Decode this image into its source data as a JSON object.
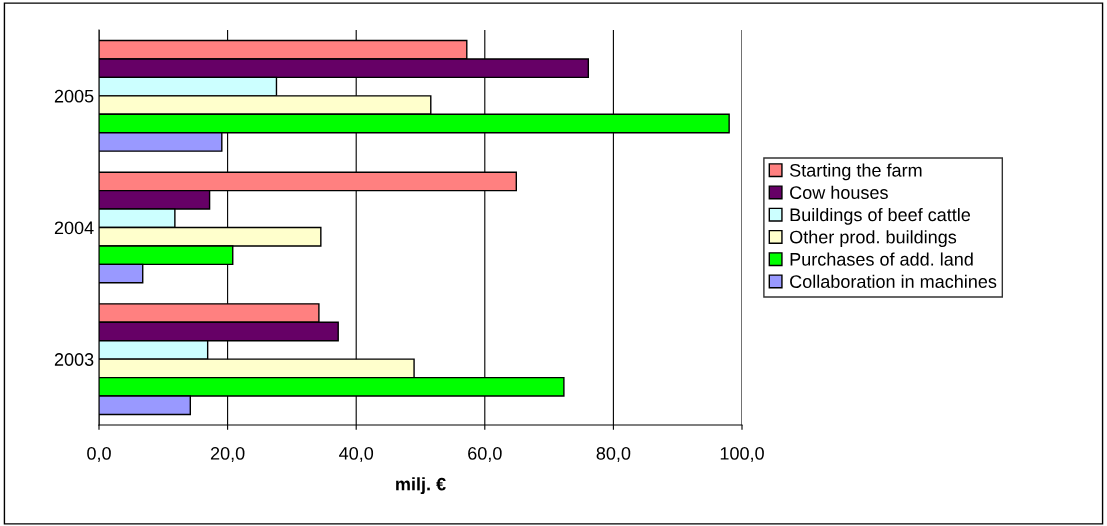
{
  "chart_data": {
    "type": "bar",
    "orientation": "horizontal",
    "xlabel": "milj. €",
    "categories": [
      "2005",
      "2004",
      "2003"
    ],
    "series": [
      {
        "name": "Starting the farm",
        "color": "#ff8080",
        "values": [
          57.2,
          64.9,
          34.2
        ]
      },
      {
        "name": "Cow houses",
        "color": "#660066",
        "values": [
          76.1,
          17.2,
          37.2
        ]
      },
      {
        "name": "Buildings of beef cattle",
        "color": "#ccffff",
        "values": [
          27.6,
          11.8,
          16.9
        ]
      },
      {
        "name": "Other prod. buildings",
        "color": "#ffffcc",
        "values": [
          51.6,
          34.5,
          49.0
        ]
      },
      {
        "name": "Purchases of add. land",
        "color": "#00ff00",
        "values": [
          98.0,
          20.8,
          72.3
        ]
      },
      {
        "name": "Collaboration in machines",
        "color": "#9999ff",
        "values": [
          19.1,
          6.8,
          14.2
        ]
      }
    ],
    "xlim": [
      0,
      100
    ],
    "xticks": [
      {
        "value": 0,
        "label": "0,0"
      },
      {
        "value": 20,
        "label": "20,0"
      },
      {
        "value": 40,
        "label": "40,0"
      },
      {
        "value": 60,
        "label": "60,0"
      },
      {
        "value": 80,
        "label": "80,0"
      },
      {
        "value": 100,
        "label": "100,0"
      }
    ],
    "grid": "x",
    "legend": "right"
  }
}
